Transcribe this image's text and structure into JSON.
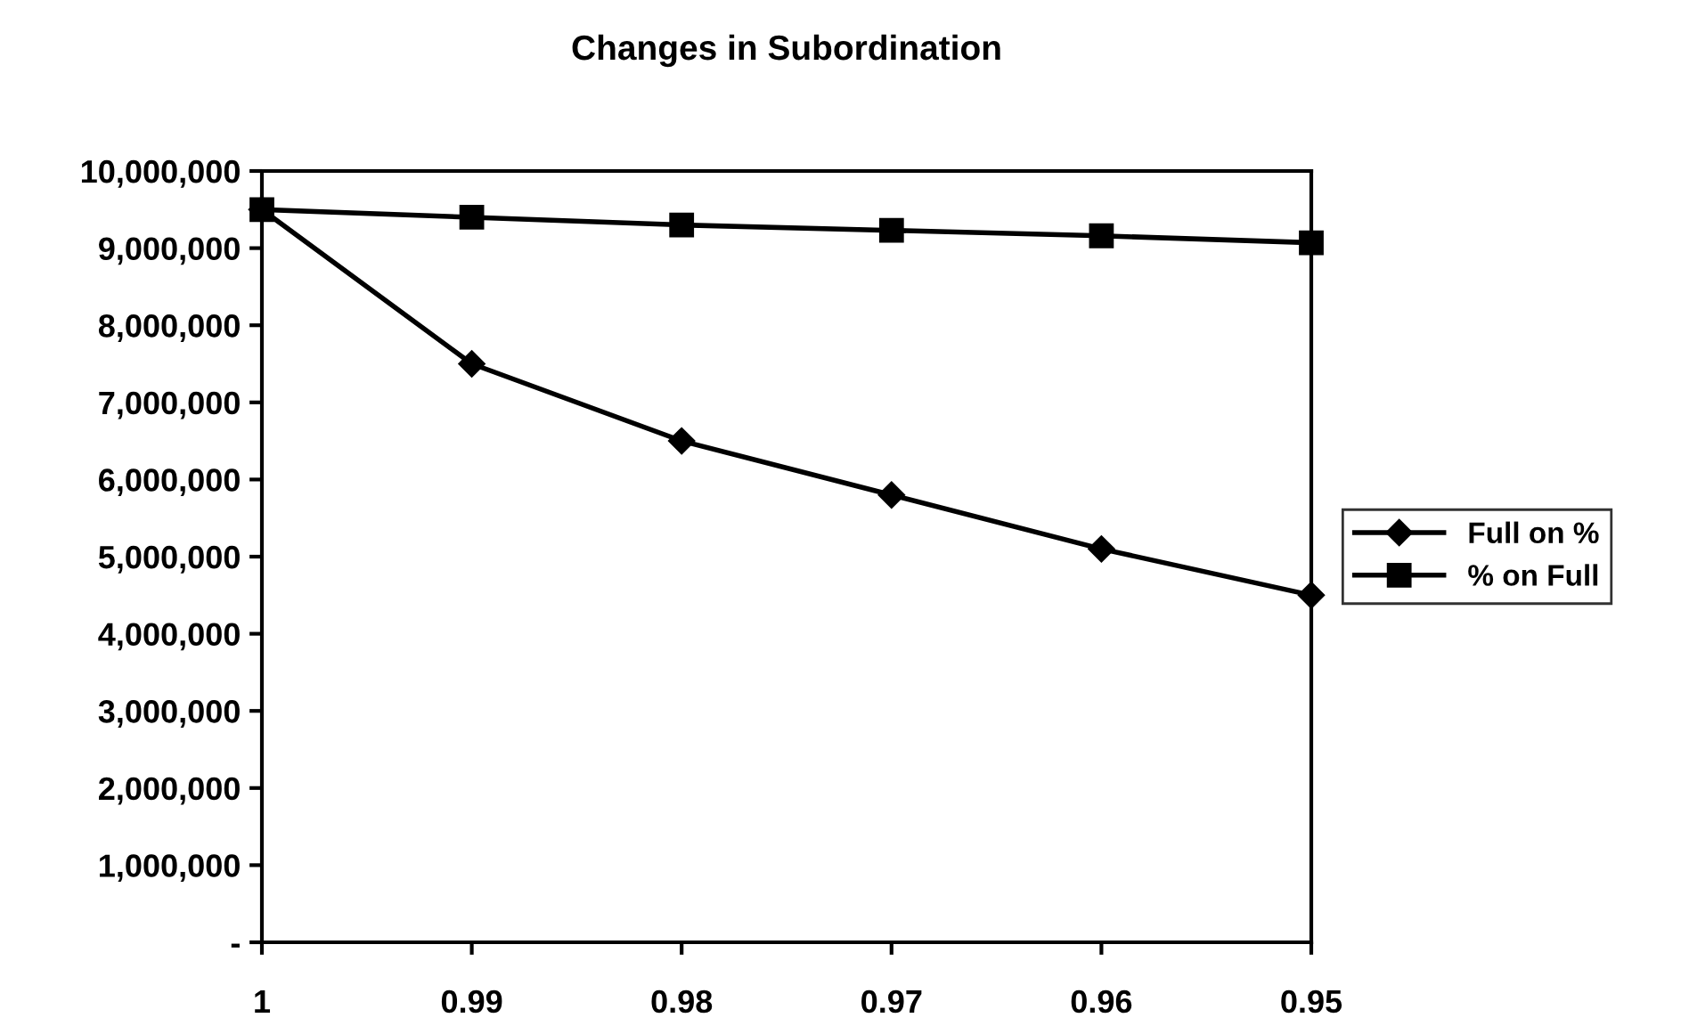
{
  "chart_data": {
    "type": "line",
    "title": "Changes in Subordination",
    "categories": [
      "1",
      "0.99",
      "0.98",
      "0.97",
      "0.96",
      "0.95"
    ],
    "series": [
      {
        "name": "Full on %",
        "color": "#000000",
        "marker": "diamond",
        "values": [
          9500000,
          7500000,
          6500000,
          5800000,
          5100000,
          4500000
        ]
      },
      {
        "name": "% on Full",
        "color": "#000000",
        "marker": "square",
        "values": [
          9500000,
          9400000,
          9300000,
          9230000,
          9160000,
          9070000
        ]
      }
    ],
    "ylim": [
      0,
      10000000
    ],
    "yticks": [
      {
        "value": 0,
        "label": "-"
      },
      {
        "value": 1000000,
        "label": "1,000,000"
      },
      {
        "value": 2000000,
        "label": "2,000,000"
      },
      {
        "value": 3000000,
        "label": "3,000,000"
      },
      {
        "value": 4000000,
        "label": "4,000,000"
      },
      {
        "value": 5000000,
        "label": "5,000,000"
      },
      {
        "value": 6000000,
        "label": "6,000,000"
      },
      {
        "value": 7000000,
        "label": "7,000,000"
      },
      {
        "value": 8000000,
        "label": "8,000,000"
      },
      {
        "value": 9000000,
        "label": "9,000,000"
      },
      {
        "value": 10000000,
        "label": "10,000,000"
      }
    ],
    "grid": false,
    "legend": "right",
    "line_style": "solid"
  }
}
